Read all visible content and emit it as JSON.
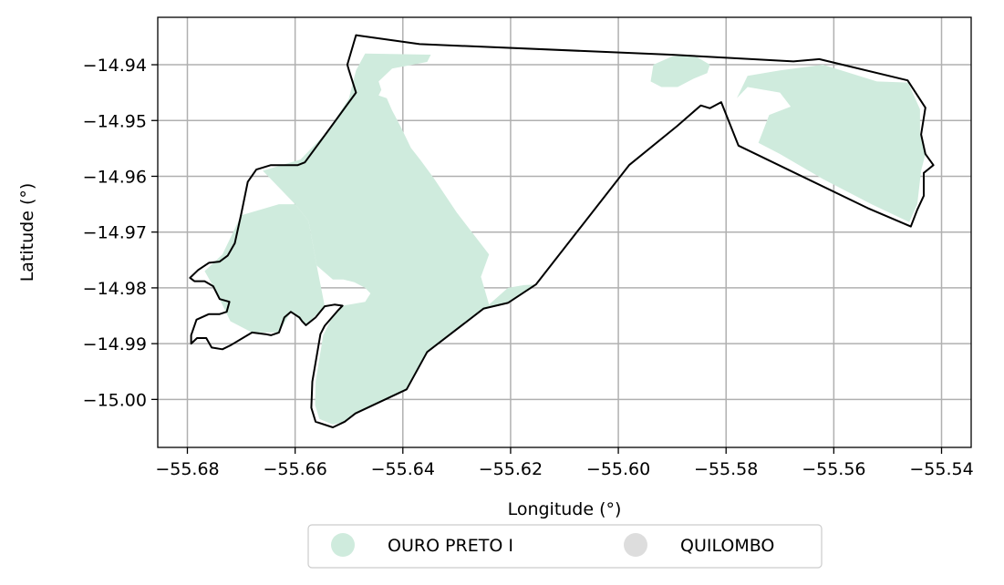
{
  "chart_data": {
    "type": "map",
    "xlabel": "Longitude (°)",
    "ylabel": "Latitude (°)",
    "xlim": [
      -55.6855,
      -55.5345
    ],
    "ylim": [
      -15.0086,
      -14.9315
    ],
    "grid": true,
    "x_ticks": [
      -55.68,
      -55.66,
      -55.64,
      -55.62,
      -55.6,
      -55.58,
      -55.56,
      -55.54
    ],
    "x_tick_labels": [
      "−55.68",
      "−55.66",
      "−55.64",
      "−55.62",
      "−55.60",
      "−55.58",
      "−55.56",
      "−55.54"
    ],
    "y_ticks": [
      -14.94,
      -14.95,
      -14.96,
      -14.97,
      -14.98,
      -14.99,
      -15.0
    ],
    "y_tick_labels": [
      "−14.94",
      "−14.95",
      "−14.96",
      "−14.97",
      "−14.98",
      "−14.99",
      "−15.00"
    ],
    "legend_position": "bottom-center",
    "legend": [
      {
        "label": "OURO PRETO I",
        "color": "#cfebdd"
      },
      {
        "label": "QUILOMBO",
        "color": "#dddddd"
      }
    ],
    "boundary_color": "#000000",
    "boundary": [
      [
        -55.6487,
        -14.9347
      ],
      [
        -55.6369,
        -14.9363
      ],
      [
        -55.5903,
        -14.9382
      ],
      [
        -55.5675,
        -14.9394
      ],
      [
        -55.5627,
        -14.939
      ],
      [
        -55.5463,
        -14.9428
      ],
      [
        -55.543,
        -14.9477
      ],
      [
        -55.5438,
        -14.9525
      ],
      [
        -55.543,
        -14.956
      ],
      [
        -55.5415,
        -14.958
      ],
      [
        -55.5433,
        -14.9594
      ],
      [
        -55.5433,
        -14.9635
      ],
      [
        -55.5445,
        -14.966
      ],
      [
        -55.5457,
        -14.969
      ],
      [
        -55.5537,
        -14.9657
      ],
      [
        -55.5777,
        -14.9545
      ],
      [
        -55.5809,
        -14.9467
      ],
      [
        -55.583,
        -14.9478
      ],
      [
        -55.5847,
        -14.9473
      ],
      [
        -55.5891,
        -14.951
      ],
      [
        -55.598,
        -14.958
      ],
      [
        -55.6153,
        -14.9794
      ],
      [
        -55.6205,
        -14.9827
      ],
      [
        -55.625,
        -14.9837
      ],
      [
        -55.6355,
        -14.9915
      ],
      [
        -55.6393,
        -14.9982
      ],
      [
        -55.6488,
        -15.0025
      ],
      [
        -55.6508,
        -15.004
      ],
      [
        -55.653,
        -15.005
      ],
      [
        -55.6562,
        -15.004
      ],
      [
        -55.657,
        -15.0015
      ],
      [
        -55.6568,
        -14.9968
      ],
      [
        -55.6553,
        -14.9883
      ],
      [
        -55.6545,
        -14.9868
      ],
      [
        -55.652,
        -14.984
      ],
      [
        -55.6512,
        -14.9832
      ],
      [
        -55.6527,
        -14.983
      ],
      [
        -55.6545,
        -14.9833
      ],
      [
        -55.6562,
        -14.9853
      ],
      [
        -55.658,
        -14.9867
      ],
      [
        -55.6587,
        -14.986
      ],
      [
        -55.6592,
        -14.9853
      ],
      [
        -55.6608,
        -14.9843
      ],
      [
        -55.662,
        -14.9853
      ],
      [
        -55.663,
        -14.988
      ],
      [
        -55.6645,
        -14.9885
      ],
      [
        -55.6655,
        -14.9883
      ],
      [
        -55.668,
        -14.988
      ],
      [
        -55.668,
        -14.988
      ],
      [
        -55.672,
        -14.9903
      ],
      [
        -55.6735,
        -14.991
      ],
      [
        -55.6755,
        -14.9907
      ],
      [
        -55.6765,
        -14.989
      ],
      [
        -55.6782,
        -14.989
      ],
      [
        -55.6793,
        -14.99
      ],
      [
        -55.6793,
        -14.9885
      ],
      [
        -55.6783,
        -14.9857
      ],
      [
        -55.676,
        -14.9847
      ],
      [
        -55.674,
        -14.9847
      ],
      [
        -55.6727,
        -14.9843
      ],
      [
        -55.6722,
        -14.9825
      ],
      [
        -55.674,
        -14.982
      ],
      [
        -55.6752,
        -14.9797
      ],
      [
        -55.6768,
        -14.9788
      ],
      [
        -55.6787,
        -14.9788
      ],
      [
        -55.6795,
        -14.9782
      ],
      [
        -55.678,
        -14.9768
      ],
      [
        -55.676,
        -14.9755
      ],
      [
        -55.674,
        -14.9753
      ],
      [
        -55.6725,
        -14.9742
      ],
      [
        -55.6712,
        -14.972
      ],
      [
        -55.67,
        -14.9667
      ],
      [
        -55.6688,
        -14.961
      ],
      [
        -55.6672,
        -14.9588
      ],
      [
        -55.6645,
        -14.958
      ],
      [
        -55.6595,
        -14.958
      ],
      [
        -55.6582,
        -14.9575
      ],
      [
        -55.654,
        -14.952
      ],
      [
        -55.6487,
        -14.945
      ],
      [
        -55.65,
        -14.941
      ],
      [
        -55.6503,
        -14.94
      ],
      [
        -55.6487,
        -14.9347
      ]
    ],
    "regions": [
      {
        "name": "OURO PRETO I",
        "polygons": [
          [
            [
              -55.647,
              -14.938
            ],
            [
              -55.6348,
              -14.9382
            ],
            [
              -55.6355,
              -14.9395
            ],
            [
              -55.642,
              -14.9407
            ],
            [
              -55.6445,
              -14.943
            ],
            [
              -55.644,
              -14.9445
            ],
            [
              -55.6445,
              -14.9455
            ],
            [
              -55.643,
              -14.946
            ],
            [
              -55.642,
              -14.9482
            ],
            [
              -55.6403,
              -14.9513
            ],
            [
              -55.6385,
              -14.9549
            ],
            [
              -55.6368,
              -14.957
            ],
            [
              -55.6343,
              -14.9603
            ],
            [
              -55.63,
              -14.9665
            ],
            [
              -55.624,
              -14.974
            ],
            [
              -55.6255,
              -14.978
            ],
            [
              -55.624,
              -14.983
            ],
            [
              -55.6205,
              -14.98
            ],
            [
              -55.6175,
              -14.9795
            ],
            [
              -55.6153,
              -14.9794
            ],
            [
              -55.6205,
              -14.9827
            ],
            [
              -55.625,
              -14.9837
            ],
            [
              -55.6355,
              -14.9915
            ],
            [
              -55.6393,
              -14.9982
            ],
            [
              -55.6488,
              -15.0025
            ],
            [
              -55.6508,
              -15.004
            ],
            [
              -55.653,
              -15.0045
            ],
            [
              -55.6555,
              -15.0035
            ],
            [
              -55.6563,
              -15.001
            ],
            [
              -55.6562,
              -14.9968
            ],
            [
              -55.6548,
              -14.9885
            ],
            [
              -55.6535,
              -14.986
            ],
            [
              -55.6512,
              -14.9832
            ],
            [
              -55.647,
              -14.9825
            ],
            [
              -55.646,
              -14.981
            ],
            [
              -55.647,
              -14.98
            ],
            [
              -55.649,
              -14.979
            ],
            [
              -55.651,
              -14.9785
            ],
            [
              -55.653,
              -14.9785
            ],
            [
              -55.656,
              -14.976
            ],
            [
              -55.6575,
              -14.968
            ],
            [
              -55.66,
              -14.965
            ],
            [
              -55.664,
              -14.961
            ],
            [
              -55.666,
              -14.959
            ],
            [
              -55.659,
              -14.957
            ],
            [
              -55.654,
              -14.952
            ],
            [
              -55.65,
              -14.946
            ],
            [
              -55.6487,
              -14.941
            ],
            [
              -55.647,
              -14.938
            ]
          ],
          [
            [
              -55.6608,
              -14.9843
            ],
            [
              -55.663,
              -14.988
            ],
            [
              -55.668,
              -14.988
            ],
            [
              -55.672,
              -14.986
            ],
            [
              -55.674,
              -14.982
            ],
            [
              -55.6752,
              -14.9797
            ],
            [
              -55.6768,
              -14.977
            ],
            [
              -55.6735,
              -14.974
            ],
            [
              -55.67,
              -14.967
            ],
            [
              -55.663,
              -14.965
            ],
            [
              -55.66,
              -14.965
            ],
            [
              -55.6575,
              -14.968
            ],
            [
              -55.656,
              -14.976
            ],
            [
              -55.6545,
              -14.9833
            ],
            [
              -55.658,
              -14.9867
            ],
            [
              -55.6608,
              -14.9843
            ]
          ],
          [
            [
              -55.59,
              -14.9385
            ],
            [
              -55.586,
              -14.9383
            ],
            [
              -55.583,
              -14.94
            ],
            [
              -55.5835,
              -14.9415
            ],
            [
              -55.586,
              -14.9425
            ],
            [
              -55.589,
              -14.944
            ],
            [
              -55.592,
              -14.944
            ],
            [
              -55.594,
              -14.943
            ],
            [
              -55.5935,
              -14.94
            ],
            [
              -55.59,
              -14.9385
            ]
          ],
          [
            [
              -55.57,
              -14.941
            ],
            [
              -55.562,
              -14.94
            ],
            [
              -55.552,
              -14.943
            ],
            [
              -55.5462,
              -14.9432
            ],
            [
              -55.544,
              -14.948
            ],
            [
              -55.544,
              -14.9525
            ],
            [
              -55.543,
              -14.956
            ],
            [
              -55.5438,
              -14.959
            ],
            [
              -55.5445,
              -14.965
            ],
            [
              -55.546,
              -14.9682
            ],
            [
              -55.553,
              -14.965
            ],
            [
              -55.562,
              -14.9605
            ],
            [
              -55.57,
              -14.956
            ],
            [
              -55.574,
              -14.954
            ],
            [
              -55.572,
              -14.949
            ],
            [
              -55.568,
              -14.9475
            ],
            [
              -55.57,
              -14.945
            ],
            [
              -55.576,
              -14.944
            ],
            [
              -55.578,
              -14.946
            ],
            [
              -55.576,
              -14.942
            ],
            [
              -55.57,
              -14.941
            ]
          ]
        ]
      }
    ]
  }
}
